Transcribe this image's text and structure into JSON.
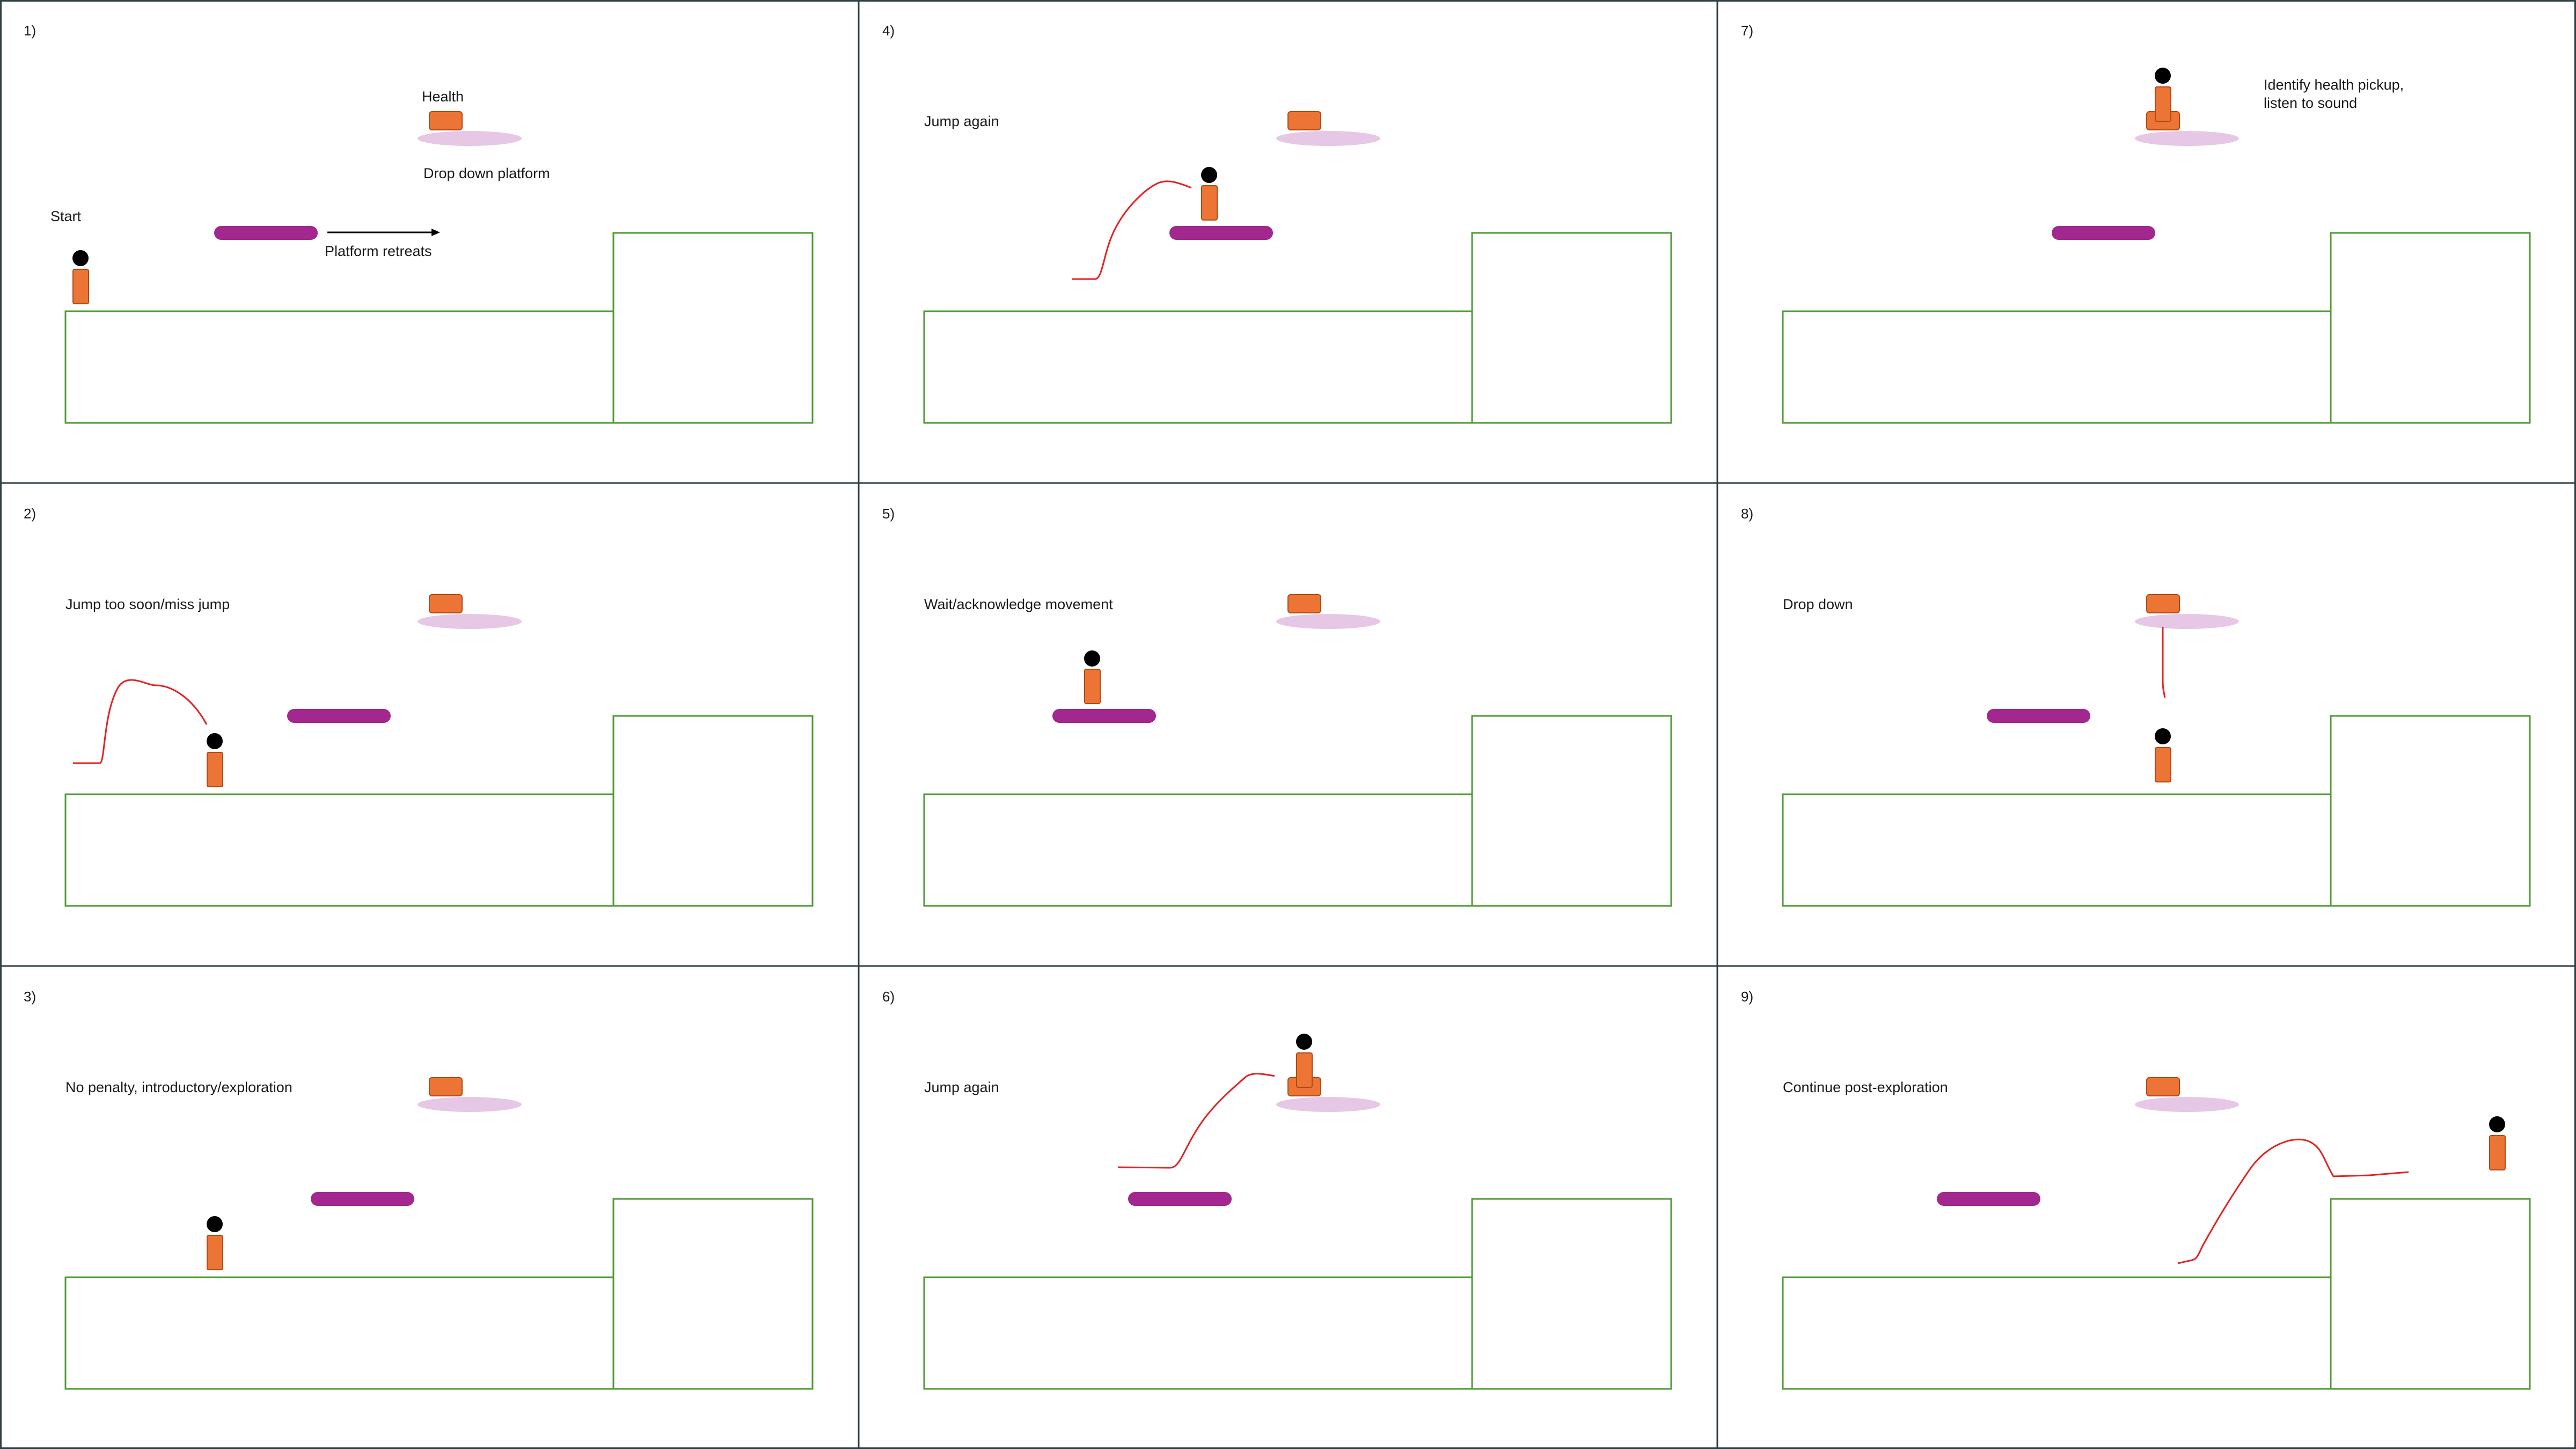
{
  "colors": {
    "grid_line": "#2f3f44",
    "ground": "#4e9a34",
    "figure_body": "#ec7535",
    "figure_body_stroke": "#b04a16",
    "figure_head": "#000000",
    "moving_platform": "#a2278f",
    "drop_platform": "#e6c8e6",
    "path": "#e32222",
    "text": "#1a1a1a"
  },
  "panels": [
    {
      "number": "1)",
      "caption": "",
      "notes": [
        "Health",
        "Drop down platform",
        "Start",
        "Platform retreats"
      ]
    },
    {
      "number": "2)",
      "caption": "Jump too soon/miss jump",
      "notes": []
    },
    {
      "number": "3)",
      "caption": "No penalty, introductory/exploration",
      "notes": []
    },
    {
      "number": "4)",
      "caption": "Jump again",
      "notes": []
    },
    {
      "number": "5)",
      "caption": "Wait/acknowledge movement",
      "notes": []
    },
    {
      "number": "6)",
      "caption": "Jump again",
      "notes": []
    },
    {
      "number": "7)",
      "caption": "",
      "notes": [
        "Identify health pickup,",
        "listen to sound"
      ]
    },
    {
      "number": "8)",
      "caption": "Drop down",
      "notes": []
    },
    {
      "number": "9)",
      "caption": "Continue post-exploration",
      "notes": []
    }
  ]
}
